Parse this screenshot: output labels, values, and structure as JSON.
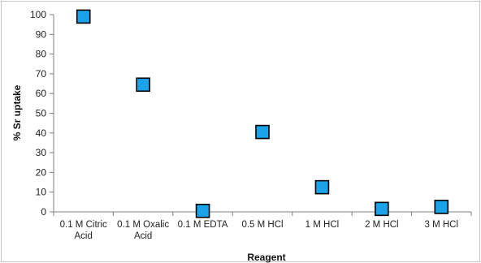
{
  "chart_data": {
    "type": "scatter",
    "title": "",
    "xlabel": "Reagent",
    "ylabel": "% Sr uptake",
    "ylim": [
      0,
      100
    ],
    "yticks": [
      0,
      10,
      20,
      30,
      40,
      50,
      60,
      70,
      80,
      90,
      100
    ],
    "categories": [
      [
        "0.1 M Citric",
        "Acid"
      ],
      [
        "0.1 M Oxalic",
        "Acid"
      ],
      [
        "0.1 M EDTA"
      ],
      [
        "0.5 M HCl"
      ],
      [
        "1 M HCl"
      ],
      [
        "2 M HCl"
      ],
      [
        "3 M HCl"
      ]
    ],
    "values": [
      99,
      64.5,
      0.5,
      40.5,
      12.5,
      1.5,
      2.5
    ],
    "marker": {
      "shape": "square",
      "fill": "#1aa3e8",
      "stroke": "#000000"
    },
    "grid": false,
    "legend": "none"
  }
}
